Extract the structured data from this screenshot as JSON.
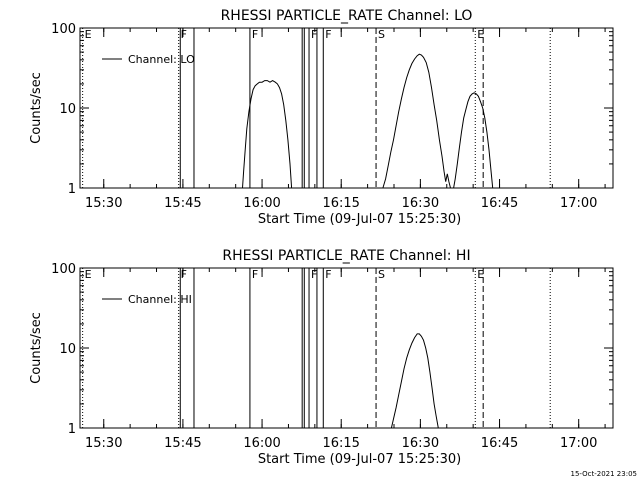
{
  "footer": {
    "timestamp": "15-Oct-2021 23:05"
  },
  "chart_data": [
    {
      "type": "line",
      "title": "RHESSI PARTICLE_RATE Channel: LO",
      "xlabel": "Start Time (09-Jul-07 15:25:30)",
      "ylabel": "Counts/sec",
      "x_ticks": [
        "15:30",
        "15:45",
        "16:00",
        "16:15",
        "16:30",
        "16:45",
        "17:00"
      ],
      "x_tick_minutes": [
        4.5,
        19.5,
        34.5,
        49.5,
        64.5,
        79.5,
        94.5
      ],
      "x_range_minutes": [
        0,
        101
      ],
      "y_ticks": [
        "1",
        "10",
        "100"
      ],
      "y_tick_values": [
        1,
        10,
        100
      ],
      "ylim": [
        1,
        100
      ],
      "yscale": "log",
      "legend": {
        "label": "Channel: LO",
        "position": "top-left"
      },
      "markers": [
        {
          "label": "E",
          "minute": 0.5,
          "style": "dotted"
        },
        {
          "label": "F",
          "minute": 18.7,
          "style": "dotted"
        },
        {
          "label": "",
          "minute": 19.0,
          "style": "solid"
        },
        {
          "label": "",
          "minute": 21.6,
          "style": "solid"
        },
        {
          "label": "F",
          "minute": 32.2,
          "style": "solid"
        },
        {
          "label": "",
          "minute": 42.1,
          "style": "solid"
        },
        {
          "label": "",
          "minute": 42.5,
          "style": "solid"
        },
        {
          "label": "F",
          "minute": 43.4,
          "style": "solid"
        },
        {
          "label": "",
          "minute": 44.9,
          "style": "solid"
        },
        {
          "label": "F",
          "minute": 46.1,
          "style": "solid"
        },
        {
          "label": "S",
          "minute": 56.1,
          "style": "dashed"
        },
        {
          "label": "E",
          "minute": 74.9,
          "style": "dotted"
        },
        {
          "label": "",
          "minute": 76.4,
          "style": "dashed"
        },
        {
          "label": "",
          "minute": 89.1,
          "style": "dotted"
        }
      ],
      "series": [
        {
          "segments": [
            [
              [
                30.8,
                1.0
              ],
              [
                31.0,
                1.6
              ],
              [
                31.3,
                3.0
              ],
              [
                31.6,
                5.5
              ],
              [
                32.0,
                9.0
              ],
              [
                32.4,
                13
              ],
              [
                32.8,
                17
              ],
              [
                33.2,
                19
              ],
              [
                33.6,
                20
              ],
              [
                34.0,
                21
              ],
              [
                34.5,
                21
              ],
              [
                35.0,
                22
              ],
              [
                35.5,
                22
              ],
              [
                36.0,
                21
              ],
              [
                36.5,
                22
              ],
              [
                37.0,
                21
              ],
              [
                37.4,
                20
              ],
              [
                37.8,
                18
              ],
              [
                38.2,
                15
              ],
              [
                38.6,
                11
              ],
              [
                39.0,
                7.0
              ],
              [
                39.4,
                4.0
              ],
              [
                39.8,
                2.0
              ],
              [
                40.1,
                1.0
              ]
            ],
            [
              [
                57.4,
                1.0
              ],
              [
                57.9,
                1.3
              ],
              [
                58.4,
                1.9
              ],
              [
                58.9,
                2.8
              ],
              [
                59.4,
                4.0
              ],
              [
                59.9,
                6.0
              ],
              [
                60.4,
                9.0
              ],
              [
                60.9,
                13
              ],
              [
                61.4,
                18
              ],
              [
                61.9,
                24
              ],
              [
                62.4,
                30
              ],
              [
                62.9,
                36
              ],
              [
                63.4,
                41
              ],
              [
                63.9,
                45
              ],
              [
                64.3,
                47
              ],
              [
                64.7,
                46
              ],
              [
                65.1,
                43
              ],
              [
                65.6,
                37
              ],
              [
                66.1,
                28
              ],
              [
                66.6,
                18
              ],
              [
                67.1,
                11
              ],
              [
                67.6,
                7.0
              ],
              [
                68.1,
                4.0
              ],
              [
                68.6,
                2.5
              ],
              [
                69.0,
                1.6
              ],
              [
                69.3,
                1.2
              ],
              [
                69.6,
                1.5
              ],
              [
                69.9,
                1.2
              ],
              [
                70.2,
                1.0
              ]
            ],
            [
              [
                70.8,
                1.0
              ],
              [
                71.1,
                1.3
              ],
              [
                71.5,
                2.0
              ],
              [
                71.9,
                3.2
              ],
              [
                72.3,
                5.0
              ],
              [
                72.7,
                7.5
              ],
              [
                73.1,
                9.5
              ],
              [
                73.5,
                12
              ],
              [
                73.9,
                14
              ],
              [
                74.3,
                15
              ],
              [
                74.7,
                15.5
              ],
              [
                75.1,
                15
              ],
              [
                75.5,
                14
              ],
              [
                75.9,
                12
              ],
              [
                76.3,
                10
              ],
              [
                76.7,
                7.5
              ],
              [
                77.1,
                5.0
              ],
              [
                77.5,
                3.0
              ],
              [
                77.9,
                1.6
              ],
              [
                78.2,
                1.0
              ]
            ]
          ]
        }
      ]
    },
    {
      "type": "line",
      "title": "RHESSI PARTICLE_RATE Channel: HI",
      "xlabel": "Start Time (09-Jul-07 15:25:30)",
      "ylabel": "Counts/sec",
      "x_ticks": [
        "15:30",
        "15:45",
        "16:00",
        "16:15",
        "16:30",
        "16:45",
        "17:00"
      ],
      "x_tick_minutes": [
        4.5,
        19.5,
        34.5,
        49.5,
        64.5,
        79.5,
        94.5
      ],
      "x_range_minutes": [
        0,
        101
      ],
      "y_ticks": [
        "1",
        "10",
        "100"
      ],
      "y_tick_values": [
        1,
        10,
        100
      ],
      "ylim": [
        1,
        100
      ],
      "yscale": "log",
      "legend": {
        "label": "Channel: HI",
        "position": "top-left"
      },
      "markers": [
        {
          "label": "E",
          "minute": 0.5,
          "style": "dotted"
        },
        {
          "label": "F",
          "minute": 18.7,
          "style": "dotted"
        },
        {
          "label": "",
          "minute": 19.0,
          "style": "solid"
        },
        {
          "label": "",
          "minute": 21.6,
          "style": "solid"
        },
        {
          "label": "F",
          "minute": 32.2,
          "style": "solid"
        },
        {
          "label": "",
          "minute": 42.1,
          "style": "solid"
        },
        {
          "label": "",
          "minute": 42.5,
          "style": "solid"
        },
        {
          "label": "F",
          "minute": 43.4,
          "style": "solid"
        },
        {
          "label": "",
          "minute": 44.9,
          "style": "solid"
        },
        {
          "label": "F",
          "minute": 46.1,
          "style": "solid"
        },
        {
          "label": "S",
          "minute": 56.1,
          "style": "dashed"
        },
        {
          "label": "E",
          "minute": 74.9,
          "style": "dotted"
        },
        {
          "label": "",
          "minute": 76.4,
          "style": "dashed"
        },
        {
          "label": "",
          "minute": 89.1,
          "style": "dotted"
        }
      ],
      "series": [
        {
          "segments": [
            [
              [
                59.0,
                1.0
              ],
              [
                59.4,
                1.3
              ],
              [
                59.9,
                1.8
              ],
              [
                60.4,
                2.6
              ],
              [
                60.9,
                3.8
              ],
              [
                61.4,
                5.5
              ],
              [
                61.9,
                7.5
              ],
              [
                62.4,
                9.5
              ],
              [
                62.9,
                11.5
              ],
              [
                63.4,
                13.5
              ],
              [
                63.9,
                15
              ],
              [
                64.3,
                15
              ],
              [
                64.7,
                14
              ],
              [
                65.1,
                12.5
              ],
              [
                65.5,
                10
              ],
              [
                65.9,
                7.5
              ],
              [
                66.3,
                5.0
              ],
              [
                66.7,
                3.2
              ],
              [
                67.1,
                2.0
              ],
              [
                67.5,
                1.4
              ],
              [
                67.9,
                1.0
              ]
            ]
          ]
        }
      ]
    }
  ]
}
